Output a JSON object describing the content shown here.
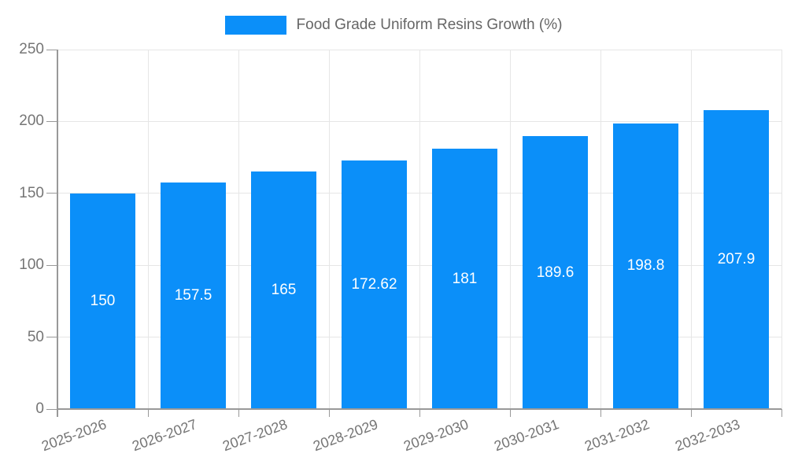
{
  "legend": {
    "label": "Food Grade Uniform Resins Growth (%)",
    "swatch_icon": "series-color-swatch"
  },
  "colors": {
    "bar": "#0b8ff9",
    "grid": "#e6e6e6",
    "axis": "#999999",
    "tick_label": "#757575",
    "legend_text": "#666666",
    "bar_label_text": "#ffffff",
    "background": "#ffffff"
  },
  "chart_data": {
    "type": "bar",
    "title": "Food Grade Uniform Resins Growth (%)",
    "categories": [
      "2025-2026",
      "2026-2027",
      "2027-2028",
      "2028-2029",
      "2029-2030",
      "2030-2031",
      "2031-2032",
      "2032-2033"
    ],
    "series": [
      {
        "name": "Food Grade Uniform Resins Growth (%)",
        "values": [
          150,
          157.5,
          165,
          172.62,
          181,
          189.6,
          198.8,
          207.9
        ],
        "value_labels": [
          "150",
          "157.5",
          "165",
          "172.62",
          "181",
          "189.6",
          "198.8",
          "207.9"
        ]
      }
    ],
    "xlabel": "",
    "ylabel": "",
    "ylim": [
      0,
      250
    ],
    "yticks": [
      0,
      50,
      100,
      150,
      200,
      250
    ],
    "ytick_labels": [
      "0",
      "50",
      "100",
      "150",
      "200",
      "250"
    ],
    "grid": "both",
    "legend_position": "top",
    "x_label_rotation_deg": -20,
    "bar_labels_position": "inside-middle"
  }
}
